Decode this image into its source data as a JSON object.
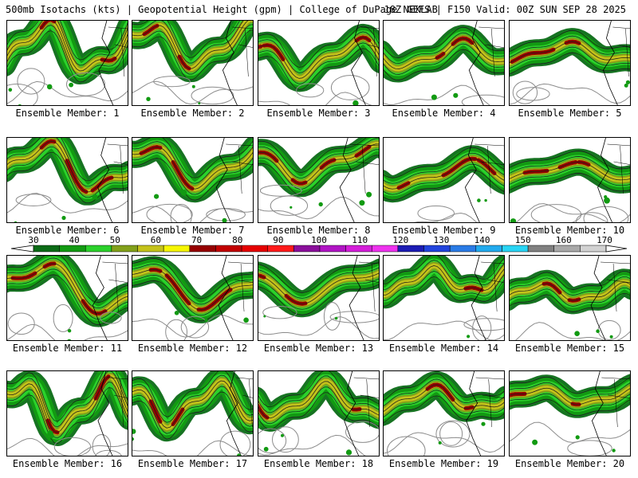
{
  "header": {
    "left": "500mb Isotachs (kts) | Geopotential Height (gpm) | College of DuPage NEXLAB",
    "right": "18Z GEFS | F150 Valid: 00Z SUN SEP 28 2025"
  },
  "colorbar": {
    "labels": [
      "30",
      "40",
      "50",
      "60",
      "70",
      "80",
      "90",
      "100",
      "110",
      "120",
      "130",
      "140",
      "150",
      "160",
      "170"
    ],
    "colors": [
      "#0b6b16",
      "#129a12",
      "#2bd12b",
      "#82a01a",
      "#c4c21a",
      "#f6f600",
      "#960000",
      "#c20000",
      "#e60000",
      "#ff1a1a",
      "#8a0f9b",
      "#b014c4",
      "#d41ed9",
      "#ee32ee",
      "#1c1cb4",
      "#2244dd",
      "#2a7be6",
      "#22aaee",
      "#28d4f4",
      "#808080",
      "#a8a8a8",
      "#d2d2d2"
    ]
  },
  "panels": [
    {
      "label": "Ensemble Member: 1"
    },
    {
      "label": "Ensemble Member: 2"
    },
    {
      "label": "Ensemble Member: 3"
    },
    {
      "label": "Ensemble Member: 4"
    },
    {
      "label": "Ensemble Member: 5"
    },
    {
      "label": "Ensemble Member: 6"
    },
    {
      "label": "Ensemble Member: 7"
    },
    {
      "label": "Ensemble Member: 8"
    },
    {
      "label": "Ensemble Member: 9"
    },
    {
      "label": "Ensemble Member: 10"
    },
    {
      "label": "Ensemble Member: 11"
    },
    {
      "label": "Ensemble Member: 12"
    },
    {
      "label": "Ensemble Member: 13"
    },
    {
      "label": "Ensemble Member: 14"
    },
    {
      "label": "Ensemble Member: 15"
    },
    {
      "label": "Ensemble Member: 16"
    },
    {
      "label": "Ensemble Member: 17"
    },
    {
      "label": "Ensemble Member: 18"
    },
    {
      "label": "Ensemble Member: 19"
    },
    {
      "label": "Ensemble Member: 20"
    }
  ]
}
